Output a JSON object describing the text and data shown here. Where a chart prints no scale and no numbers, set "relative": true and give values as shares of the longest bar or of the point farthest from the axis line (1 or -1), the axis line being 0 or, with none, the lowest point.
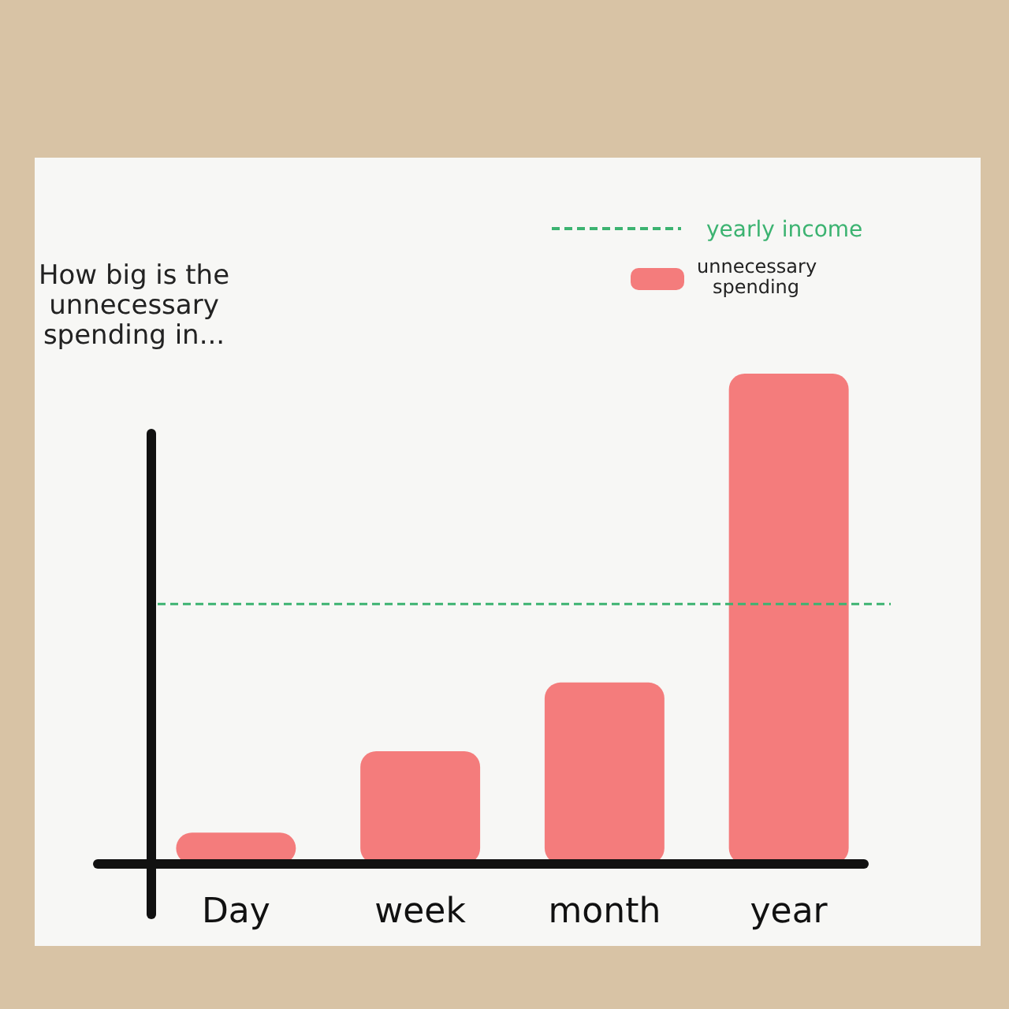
{
  "chart_data": {
    "type": "bar",
    "title": "How big is the unnecessary spending in...",
    "relative": true,
    "categories": [
      "Day",
      "week",
      "month",
      "year"
    ],
    "series": [
      {
        "name": "unnecessary spending",
        "color": "#f47c7c",
        "values": [
          0.064,
          0.23,
          0.37,
          1
        ]
      }
    ],
    "ref_lines": [
      {
        "axis": "y",
        "value": 0.53,
        "label": "yearly income",
        "color": "#3cb371",
        "line_style": "dashed"
      }
    ],
    "legend": "top right"
  }
}
